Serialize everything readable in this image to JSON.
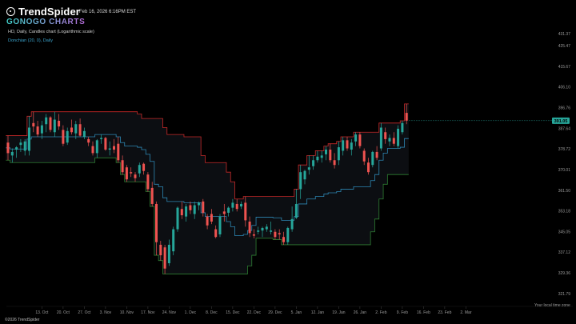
{
  "app": {
    "brand": "TrendSpider",
    "subbrand": "GONOGO CHARTS",
    "timestamp": "Feb 16, 2026 6:16PM EST",
    "footer": "©2026 TrendSpider",
    "timezone_label": "Your local time zone"
  },
  "colors": {
    "up_candle": "#26a69a",
    "down_candle": "#ef5350",
    "upper_band": "#c62828",
    "lower_band": "#2e7d32",
    "middle_band": "#2d86b3",
    "channel_fill": "#0c0e12",
    "price_badge": "#26a69a"
  },
  "chart_data": {
    "type": "candlestick",
    "title": "HD, Daily, Candles chart (Logarithmic scale)",
    "indicator": "Donchian (20, 0), Daily",
    "y_scale": "log",
    "ylim": [
      319.0,
      435.0
    ],
    "y_ticks": [
      "431.37",
      "425.47",
      "415.67",
      "406.10",
      "396.76",
      "387.64",
      "378.72",
      "370.01",
      "361.50",
      "353.18",
      "345.05",
      "337.12",
      "329.36",
      "321.79"
    ],
    "x_tick_labels": [
      "13. Oct",
      "20. Oct",
      "27. Oct",
      "3. Nov",
      "10. Nov",
      "17. Nov",
      "24. Nov",
      "1. Dec",
      "8. Dec",
      "15. Dec",
      "22. Dec",
      "29. Dec",
      "5. Jan",
      "12. Jan",
      "19. Jan",
      "26. Jan",
      "2. Feb",
      "9. Feb",
      "16. Feb",
      "23. Feb",
      "2. Mar"
    ],
    "last_price": "391.05",
    "candles": [
      {
        "d": "2025-10-01",
        "o": 381.5,
        "h": 384.5,
        "l": 374.0,
        "c": 377.0
      },
      {
        "d": "2025-10-02",
        "o": 376.0,
        "h": 379.0,
        "l": 373.0,
        "c": 377.5
      },
      {
        "d": "2025-10-03",
        "o": 378.5,
        "h": 380.0,
        "l": 375.0,
        "c": 379.5
      },
      {
        "d": "2025-10-06",
        "o": 380.5,
        "h": 383.0,
        "l": 377.5,
        "c": 381.5
      },
      {
        "d": "2025-10-07",
        "o": 378.0,
        "h": 383.0,
        "l": 376.0,
        "c": 382.0
      },
      {
        "d": "2025-10-08",
        "o": 378.0,
        "h": 393.0,
        "l": 376.0,
        "c": 388.0
      },
      {
        "d": "2025-10-09",
        "o": 390.0,
        "h": 395.0,
        "l": 386.0,
        "c": 388.5
      },
      {
        "d": "2025-10-10",
        "o": 388.5,
        "h": 391.0,
        "l": 384.0,
        "c": 385.0
      },
      {
        "d": "2025-10-13",
        "o": 385.5,
        "h": 391.0,
        "l": 383.0,
        "c": 389.0
      },
      {
        "d": "2025-10-14",
        "o": 389.5,
        "h": 394.0,
        "l": 386.0,
        "c": 392.5
      },
      {
        "d": "2025-10-15",
        "o": 392.5,
        "h": 393.0,
        "l": 386.0,
        "c": 387.0
      },
      {
        "d": "2025-10-16",
        "o": 386.0,
        "h": 395.0,
        "l": 384.0,
        "c": 391.5
      },
      {
        "d": "2025-10-17",
        "o": 391.0,
        "h": 394.0,
        "l": 387.0,
        "c": 388.5
      },
      {
        "d": "2025-10-20",
        "o": 387.0,
        "h": 389.0,
        "l": 380.0,
        "c": 381.0
      },
      {
        "d": "2025-10-21",
        "o": 381.5,
        "h": 388.0,
        "l": 380.5,
        "c": 386.5
      },
      {
        "d": "2025-10-22",
        "o": 388.0,
        "h": 391.5,
        "l": 385.0,
        "c": 386.0
      },
      {
        "d": "2025-10-23",
        "o": 385.5,
        "h": 391.0,
        "l": 383.0,
        "c": 389.5
      },
      {
        "d": "2025-10-24",
        "o": 389.5,
        "h": 392.0,
        "l": 384.0,
        "c": 384.5
      },
      {
        "d": "2025-10-27",
        "o": 384.0,
        "h": 388.0,
        "l": 383.0,
        "c": 386.5
      },
      {
        "d": "2025-10-28",
        "o": 383.0,
        "h": 384.0,
        "l": 380.0,
        "c": 381.5
      },
      {
        "d": "2025-10-29",
        "o": 380.0,
        "h": 382.0,
        "l": 376.0,
        "c": 377.0
      },
      {
        "d": "2025-10-30",
        "o": 377.0,
        "h": 383.0,
        "l": 375.0,
        "c": 382.5
      },
      {
        "d": "2025-10-31",
        "o": 383.0,
        "h": 385.0,
        "l": 381.0,
        "c": 383.5
      },
      {
        "d": "2025-11-03",
        "o": 383.5,
        "h": 384.0,
        "l": 378.0,
        "c": 378.5
      },
      {
        "d": "2025-11-04",
        "o": 378.5,
        "h": 382.0,
        "l": 376.0,
        "c": 379.0
      },
      {
        "d": "2025-11-05",
        "o": 380.0,
        "h": 383.0,
        "l": 377.0,
        "c": 378.5
      },
      {
        "d": "2025-11-06",
        "o": 381.0,
        "h": 384.0,
        "l": 373.0,
        "c": 374.0
      },
      {
        "d": "2025-11-07",
        "o": 374.0,
        "h": 376.0,
        "l": 368.0,
        "c": 369.0
      },
      {
        "d": "2025-11-10",
        "o": 371.0,
        "h": 372.0,
        "l": 365.0,
        "c": 366.0
      },
      {
        "d": "2025-11-11",
        "o": 369.0,
        "h": 371.0,
        "l": 367.0,
        "c": 368.5
      },
      {
        "d": "2025-11-12",
        "o": 368.0,
        "h": 369.0,
        "l": 365.0,
        "c": 366.5
      },
      {
        "d": "2025-11-13",
        "o": 368.5,
        "h": 373.0,
        "l": 367.0,
        "c": 372.0
      },
      {
        "d": "2025-11-14",
        "o": 372.5,
        "h": 373.0,
        "l": 368.0,
        "c": 369.5
      },
      {
        "d": "2025-11-17",
        "o": 368.0,
        "h": 369.0,
        "l": 361.0,
        "c": 362.0
      },
      {
        "d": "2025-11-18",
        "o": 362.5,
        "h": 365.0,
        "l": 355.0,
        "c": 356.0
      },
      {
        "d": "2025-11-19",
        "o": 356.0,
        "h": 357.0,
        "l": 336.0,
        "c": 341.0
      },
      {
        "d": "2025-11-20",
        "o": 340.0,
        "h": 341.5,
        "l": 334.0,
        "c": 336.0
      },
      {
        "d": "2025-11-21",
        "o": 339.0,
        "h": 340.0,
        "l": 329.0,
        "c": 331.0
      },
      {
        "d": "2025-11-24",
        "o": 333.0,
        "h": 342.0,
        "l": 332.0,
        "c": 340.0
      },
      {
        "d": "2025-11-25",
        "o": 337.5,
        "h": 347.0,
        "l": 336.0,
        "c": 346.0
      },
      {
        "d": "2025-11-26",
        "o": 346.0,
        "h": 355.0,
        "l": 345.0,
        "c": 354.5
      },
      {
        "d": "2025-11-28",
        "o": 354.0,
        "h": 357.0,
        "l": 350.0,
        "c": 351.5
      },
      {
        "d": "2025-12-01",
        "o": 351.0,
        "h": 356.0,
        "l": 349.0,
        "c": 355.0
      },
      {
        "d": "2025-12-02",
        "o": 355.5,
        "h": 357.0,
        "l": 352.0,
        "c": 353.5
      },
      {
        "d": "2025-12-03",
        "o": 352.0,
        "h": 357.0,
        "l": 350.0,
        "c": 355.5
      },
      {
        "d": "2025-12-04",
        "o": 355.5,
        "h": 357.0,
        "l": 353.5,
        "c": 356.5
      },
      {
        "d": "2025-12-05",
        "o": 357.0,
        "h": 358.0,
        "l": 351.0,
        "c": 352.5
      },
      {
        "d": "2025-12-08",
        "o": 351.0,
        "h": 352.0,
        "l": 346.0,
        "c": 347.5
      },
      {
        "d": "2025-12-09",
        "o": 352.0,
        "h": 354.0,
        "l": 348.0,
        "c": 349.0
      },
      {
        "d": "2025-12-10",
        "o": 346.0,
        "h": 347.5,
        "l": 342.5,
        "c": 343.0
      },
      {
        "d": "2025-12-11",
        "o": 344.0,
        "h": 352.0,
        "l": 343.0,
        "c": 351.0
      },
      {
        "d": "2025-12-12",
        "o": 353.0,
        "h": 356.0,
        "l": 349.0,
        "c": 352.0
      },
      {
        "d": "2025-12-15",
        "o": 352.5,
        "h": 355.0,
        "l": 351.0,
        "c": 354.5
      },
      {
        "d": "2025-12-16",
        "o": 354.5,
        "h": 358.0,
        "l": 353.0,
        "c": 356.5
      },
      {
        "d": "2025-12-17",
        "o": 356.0,
        "h": 358.0,
        "l": 353.0,
        "c": 354.0
      },
      {
        "d": "2025-12-18",
        "o": 355.0,
        "h": 357.0,
        "l": 354.0,
        "c": 356.0
      },
      {
        "d": "2025-12-19",
        "o": 356.5,
        "h": 359.0,
        "l": 347.0,
        "c": 349.5
      },
      {
        "d": "2025-12-22",
        "o": 349.0,
        "h": 351.0,
        "l": 343.0,
        "c": 344.5
      },
      {
        "d": "2025-12-23",
        "o": 344.0,
        "h": 346.0,
        "l": 342.5,
        "c": 343.5
      },
      {
        "d": "2025-12-24",
        "o": 345.0,
        "h": 347.0,
        "l": 344.0,
        "c": 345.5
      },
      {
        "d": "2025-12-26",
        "o": 345.5,
        "h": 347.0,
        "l": 343.0,
        "c": 346.5
      },
      {
        "d": "2025-12-29",
        "o": 346.0,
        "h": 348.0,
        "l": 345.0,
        "c": 347.0
      },
      {
        "d": "2025-12-30",
        "o": 345.0,
        "h": 349.0,
        "l": 344.0,
        "c": 345.5
      },
      {
        "d": "2025-12-31",
        "o": 345.0,
        "h": 346.0,
        "l": 342.0,
        "c": 343.0
      },
      {
        "d": "2026-01-02",
        "o": 344.5,
        "h": 346.0,
        "l": 342.0,
        "c": 344.0
      },
      {
        "d": "2026-01-05",
        "o": 343.0,
        "h": 345.0,
        "l": 340.0,
        "c": 341.0
      },
      {
        "d": "2026-01-06",
        "o": 341.0,
        "h": 347.0,
        "l": 340.0,
        "c": 346.5
      },
      {
        "d": "2026-01-07",
        "o": 346.0,
        "h": 355.0,
        "l": 345.0,
        "c": 350.0
      },
      {
        "d": "2026-01-08",
        "o": 350.5,
        "h": 362.0,
        "l": 350.0,
        "c": 356.0
      },
      {
        "d": "2026-01-09",
        "o": 362.0,
        "h": 372.0,
        "l": 358.0,
        "c": 369.0
      },
      {
        "d": "2026-01-12",
        "o": 366.0,
        "h": 370.0,
        "l": 364.0,
        "c": 369.5
      },
      {
        "d": "2026-01-13",
        "o": 370.0,
        "h": 376.0,
        "l": 368.0,
        "c": 371.0
      },
      {
        "d": "2026-01-14",
        "o": 371.5,
        "h": 376.0,
        "l": 370.0,
        "c": 374.0
      },
      {
        "d": "2026-01-15",
        "o": 374.0,
        "h": 378.0,
        "l": 373.0,
        "c": 375.5
      },
      {
        "d": "2026-01-16",
        "o": 375.0,
        "h": 378.0,
        "l": 373.0,
        "c": 376.0
      },
      {
        "d": "2026-01-20",
        "o": 376.5,
        "h": 380.0,
        "l": 374.0,
        "c": 378.5
      },
      {
        "d": "2026-01-21",
        "o": 378.5,
        "h": 381.0,
        "l": 373.0,
        "c": 374.0
      },
      {
        "d": "2026-01-22",
        "o": 374.0,
        "h": 377.0,
        "l": 370.5,
        "c": 372.0
      },
      {
        "d": "2026-01-23",
        "o": 374.0,
        "h": 382.0,
        "l": 372.0,
        "c": 379.5
      },
      {
        "d": "2026-01-26",
        "o": 378.0,
        "h": 384.0,
        "l": 376.0,
        "c": 382.5
      },
      {
        "d": "2026-01-27",
        "o": 382.5,
        "h": 384.0,
        "l": 378.0,
        "c": 379.0
      },
      {
        "d": "2026-01-28",
        "o": 378.5,
        "h": 383.0,
        "l": 376.0,
        "c": 381.5
      },
      {
        "d": "2026-01-29",
        "o": 382.0,
        "h": 386.0,
        "l": 380.0,
        "c": 385.0
      },
      {
        "d": "2026-01-30",
        "o": 385.0,
        "h": 386.0,
        "l": 379.0,
        "c": 380.0
      },
      {
        "d": "2026-02-02",
        "o": 378.0,
        "h": 379.0,
        "l": 372.0,
        "c": 373.5
      },
      {
        "d": "2026-02-03",
        "o": 373.0,
        "h": 375.0,
        "l": 368.0,
        "c": 369.0
      },
      {
        "d": "2026-02-04",
        "o": 372.0,
        "h": 378.0,
        "l": 371.0,
        "c": 377.5
      },
      {
        "d": "2026-02-05",
        "o": 377.5,
        "h": 380.0,
        "l": 374.0,
        "c": 375.0
      },
      {
        "d": "2026-02-06",
        "o": 379.0,
        "h": 390.0,
        "l": 378.0,
        "c": 388.0
      },
      {
        "d": "2026-02-09",
        "o": 386.0,
        "h": 388.0,
        "l": 381.0,
        "c": 383.0
      },
      {
        "d": "2026-02-10",
        "o": 382.0,
        "h": 385.0,
        "l": 380.0,
        "c": 383.5
      },
      {
        "d": "2026-02-11",
        "o": 383.5,
        "h": 386.0,
        "l": 380.0,
        "c": 381.0
      },
      {
        "d": "2026-02-12",
        "o": 380.0,
        "h": 389.0,
        "l": 379.0,
        "c": 387.5
      },
      {
        "d": "2026-02-13",
        "o": 386.0,
        "h": 391.0,
        "l": 385.0,
        "c": 390.0
      },
      {
        "d": "2026-02-16",
        "o": 394.5,
        "h": 398.5,
        "l": 389.5,
        "c": 391.05
      }
    ]
  }
}
